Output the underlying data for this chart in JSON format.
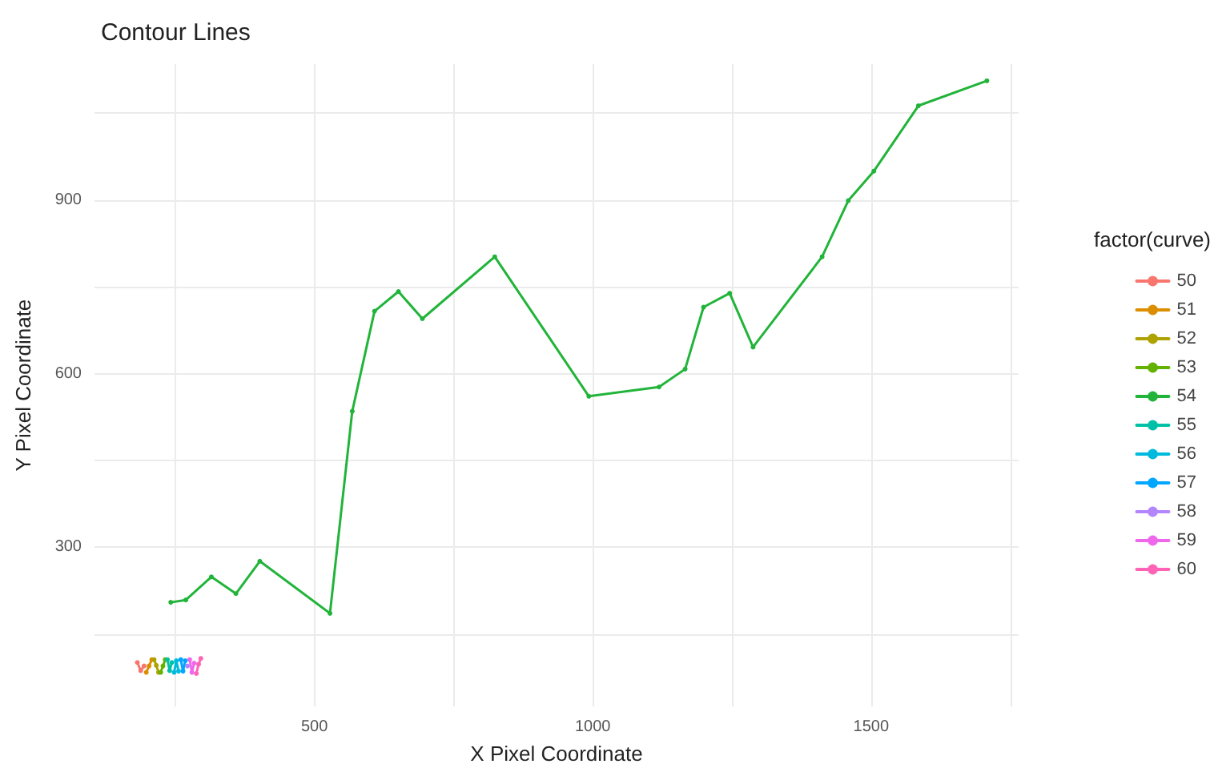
{
  "chart_data": {
    "type": "line",
    "title": "Contour Lines",
    "xlabel": "X Pixel Coordinate",
    "ylabel": "Y Pixel Coordinate",
    "legend_title": "factor(curve)",
    "legend": "right",
    "grid": true,
    "marker": "circle",
    "line_style": "solid",
    "xlim": [
      105,
      1765
    ],
    "ylim": [
      25,
      1135
    ],
    "xticks": [
      {
        "value": 250,
        "label": null
      },
      500,
      {
        "value": 750,
        "label": null
      },
      1000,
      {
        "value": 1250,
        "label": null
      },
      1500,
      {
        "value": 1750,
        "label": null
      }
    ],
    "yticks": [
      {
        "value": 150,
        "label": null
      },
      300,
      {
        "value": 450,
        "label": null
      },
      600,
      {
        "value": 750,
        "label": null
      },
      900,
      {
        "value": 1050,
        "label": null
      }
    ],
    "series": [
      {
        "name": "50",
        "color": "#f8766d",
        "x": [
          182,
          188,
          194
        ],
        "values": [
          101,
          87,
          95
        ]
      },
      {
        "name": "51",
        "color": "#db8e00",
        "x": [
          198,
          203,
          208
        ],
        "values": [
          84,
          95,
          106
        ]
      },
      {
        "name": "52",
        "color": "#aea200",
        "x": [
          212,
          216,
          220
        ],
        "values": [
          106,
          96,
          84
        ]
      },
      {
        "name": "53",
        "color": "#64b200",
        "x": [
          224,
          228,
          232
        ],
        "values": [
          84,
          95,
          106
        ]
      },
      {
        "name": "54",
        "color": "#22b43a",
        "x": [
          242,
          269,
          315,
          359,
          402,
          528,
          568,
          608,
          651,
          694,
          824,
          993,
          1119,
          1166,
          1199,
          1246,
          1288,
          1412,
          1459,
          1505,
          1585,
          1708
        ],
        "values": [
          205,
          209,
          249,
          220,
          276,
          186,
          535,
          708,
          742,
          695,
          802,
          561,
          577,
          608,
          715,
          739,
          646,
          802,
          899,
          950,
          1063,
          1106
        ]
      },
      {
        "name": "55",
        "color": "#00c1a7",
        "x": [
          236,
          240,
          244
        ],
        "values": [
          106,
          87,
          101
        ]
      },
      {
        "name": "56",
        "color": "#00bade",
        "x": [
          248,
          252,
          256
        ],
        "values": [
          84,
          104,
          86
        ]
      },
      {
        "name": "57",
        "color": "#00a6ff",
        "x": [
          260,
          264,
          268
        ],
        "values": [
          106,
          86,
          104
        ]
      },
      {
        "name": "58",
        "color": "#b385ff",
        "x": [
          272
        ],
        "values": [
          95
        ]
      },
      {
        "name": "59",
        "color": "#ef67eb",
        "x": [
          276,
          280,
          284
        ],
        "values": [
          106,
          84,
          100
        ]
      },
      {
        "name": "60",
        "color": "#ff63b6",
        "x": [
          288,
          292,
          296
        ],
        "values": [
          82,
          98,
          108
        ]
      }
    ]
  }
}
